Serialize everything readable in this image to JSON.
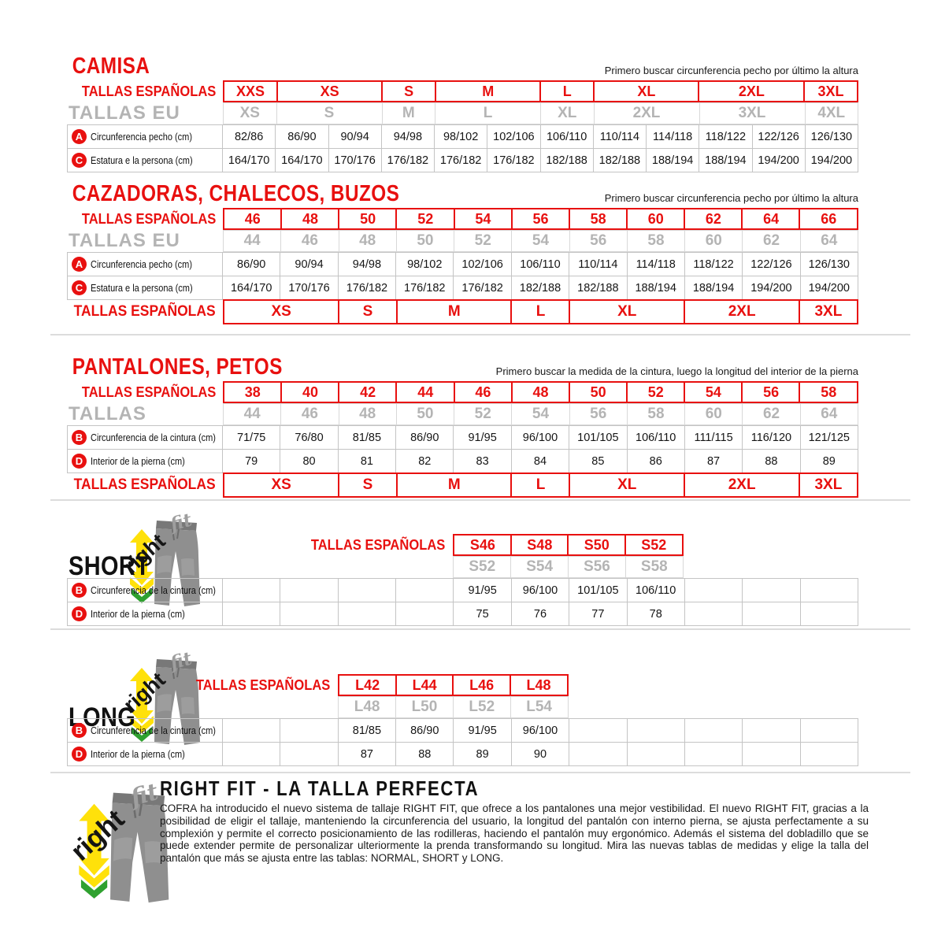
{
  "colors": {
    "red": "#e8100f",
    "gray": "#b4b4b4",
    "border": "#c4c4c4",
    "yellow": "#ffe10a",
    "green": "#2fa12f",
    "pants_gray": "#8f8f8f"
  },
  "logo": {
    "right": "right",
    "fit": "fit"
  },
  "sections": [
    {
      "title": "CAMISA",
      "note": "Primero buscar circunferencia pecho por último la altura",
      "es_label": "TALLAS ESPAÑOLAS",
      "eu_label": "TALLAS EU",
      "es_sizes": [
        {
          "label": "XXS",
          "span": 1
        },
        {
          "label": "XS",
          "span": 2
        },
        {
          "label": "S",
          "span": 1
        },
        {
          "label": "M",
          "span": 2
        },
        {
          "label": "L",
          "span": 1
        },
        {
          "label": "XL",
          "span": 2
        },
        {
          "label": "2XL",
          "span": 2
        },
        {
          "label": "3XL",
          "span": 1
        }
      ],
      "eu_sizes": [
        {
          "label": "XS",
          "span": 1
        },
        {
          "label": "S",
          "span": 2
        },
        {
          "label": "M",
          "span": 1
        },
        {
          "label": "L",
          "span": 2
        },
        {
          "label": "XL",
          "span": 1
        },
        {
          "label": "2XL",
          "span": 2
        },
        {
          "label": "3XL",
          "span": 2
        },
        {
          "label": "4XL",
          "span": 1
        }
      ],
      "rows": [
        {
          "badge": "A",
          "label": "Circunferencia pecho (cm)",
          "values": [
            "82/86",
            "86/90",
            "90/94",
            "94/98",
            "98/102",
            "102/106",
            "106/110",
            "110/114",
            "114/118",
            "118/122",
            "122/126",
            "126/130"
          ]
        },
        {
          "badge": "C",
          "label": "Estatura e la persona (cm)",
          "values": [
            "164/170",
            "164/170",
            "170/176",
            "176/182",
            "176/182",
            "176/182",
            "182/188",
            "182/188",
            "188/194",
            "188/194",
            "194/200",
            "194/200"
          ]
        }
      ],
      "bottom": null
    },
    {
      "title": "CAZADORAS, CHALECOS, BUZOS",
      "note": "Primero buscar circunferencia pecho por último la altura",
      "es_label": "TALLAS ESPAÑOLAS",
      "eu_label": "TALLAS EU",
      "es_sizes": [
        {
          "label": "46",
          "span": 1
        },
        {
          "label": "48",
          "span": 1
        },
        {
          "label": "50",
          "span": 1
        },
        {
          "label": "52",
          "span": 1
        },
        {
          "label": "54",
          "span": 1
        },
        {
          "label": "56",
          "span": 1
        },
        {
          "label": "58",
          "span": 1
        },
        {
          "label": "60",
          "span": 1
        },
        {
          "label": "62",
          "span": 1
        },
        {
          "label": "64",
          "span": 1
        },
        {
          "label": "66",
          "span": 1
        }
      ],
      "eu_sizes": [
        {
          "label": "44",
          "span": 1
        },
        {
          "label": "46",
          "span": 1
        },
        {
          "label": "48",
          "span": 1
        },
        {
          "label": "50",
          "span": 1
        },
        {
          "label": "52",
          "span": 1
        },
        {
          "label": "54",
          "span": 1
        },
        {
          "label": "56",
          "span": 1
        },
        {
          "label": "58",
          "span": 1
        },
        {
          "label": "60",
          "span": 1
        },
        {
          "label": "62",
          "span": 1
        },
        {
          "label": "64",
          "span": 1
        }
      ],
      "rows": [
        {
          "badge": "A",
          "label": "Circunferencia pecho (cm)",
          "values": [
            "86/90",
            "90/94",
            "94/98",
            "98/102",
            "102/106",
            "106/110",
            "110/114",
            "114/118",
            "118/122",
            "122/126",
            "126/130"
          ]
        },
        {
          "badge": "C",
          "label": "Estatura e la persona (cm)",
          "values": [
            "164/170",
            "170/176",
            "176/182",
            "176/182",
            "176/182",
            "182/188",
            "182/188",
            "188/194",
            "188/194",
            "194/200",
            "194/200"
          ]
        }
      ],
      "bottom": {
        "label": "TALLAS ESPAÑOLAS",
        "sizes": [
          {
            "label": "XS",
            "span": 2
          },
          {
            "label": "S",
            "span": 1
          },
          {
            "label": "M",
            "span": 2
          },
          {
            "label": "L",
            "span": 1
          },
          {
            "label": "XL",
            "span": 2
          },
          {
            "label": "2XL",
            "span": 2
          },
          {
            "label": "3XL",
            "span": 1
          }
        ]
      }
    },
    {
      "title": "PANTALONES, PETOS",
      "note": "Primero buscar la medida de la cintura, luego la longitud del interior de la pierna",
      "es_label": "TALLAS ESPAÑOLAS",
      "eu_label": "TALLAS",
      "es_sizes": [
        {
          "label": "38",
          "span": 1
        },
        {
          "label": "40",
          "span": 1
        },
        {
          "label": "42",
          "span": 1
        },
        {
          "label": "44",
          "span": 1
        },
        {
          "label": "46",
          "span": 1
        },
        {
          "label": "48",
          "span": 1
        },
        {
          "label": "50",
          "span": 1
        },
        {
          "label": "52",
          "span": 1
        },
        {
          "label": "54",
          "span": 1
        },
        {
          "label": "56",
          "span": 1
        },
        {
          "label": "58",
          "span": 1
        }
      ],
      "eu_sizes": [
        {
          "label": "44",
          "span": 1
        },
        {
          "label": "46",
          "span": 1
        },
        {
          "label": "48",
          "span": 1
        },
        {
          "label": "50",
          "span": 1
        },
        {
          "label": "52",
          "span": 1
        },
        {
          "label": "54",
          "span": 1
        },
        {
          "label": "56",
          "span": 1
        },
        {
          "label": "58",
          "span": 1
        },
        {
          "label": "60",
          "span": 1
        },
        {
          "label": "62",
          "span": 1
        },
        {
          "label": "64",
          "span": 1
        }
      ],
      "rows": [
        {
          "badge": "B",
          "label": "Circunferencia de la cintura (cm)",
          "values": [
            "71/75",
            "76/80",
            "81/85",
            "86/90",
            "91/95",
            "96/100",
            "101/105",
            "106/110",
            "111/115",
            "116/120",
            "121/125"
          ]
        },
        {
          "badge": "D",
          "label": "Interior de la pierna (cm)",
          "values": [
            "79",
            "80",
            "81",
            "82",
            "83",
            "84",
            "85",
            "86",
            "87",
            "88",
            "89"
          ]
        }
      ],
      "bottom": {
        "label": "TALLAS ESPAÑOLAS",
        "sizes": [
          {
            "label": "XS",
            "span": 2
          },
          {
            "label": "S",
            "span": 1
          },
          {
            "label": "M",
            "span": 2
          },
          {
            "label": "L",
            "span": 1
          },
          {
            "label": "XL",
            "span": 2
          },
          {
            "label": "2XL",
            "span": 2
          },
          {
            "label": "3XL",
            "span": 1
          }
        ]
      }
    }
  ],
  "rightfit": [
    {
      "heading": "SHORT",
      "es_label": "TALLAS ESPAÑOLAS",
      "red_sizes": [
        "S46",
        "S48",
        "S50",
        "S52"
      ],
      "gray_sizes": [
        "S52",
        "S54",
        "S56",
        "S58"
      ],
      "rows": [
        {
          "badge": "B",
          "label": "Circunferencia de la cintura (cm)",
          "values": [
            "91/95",
            "96/100",
            "101/105",
            "106/110"
          ]
        },
        {
          "badge": "D",
          "label": "Interior de la pierna (cm)",
          "values": [
            "75",
            "76",
            "77",
            "78"
          ]
        }
      ],
      "lead_empty": 4,
      "trail_empty": 3
    },
    {
      "heading": "LONG",
      "es_label": "TALLAS ESPAÑOLAS",
      "red_sizes": [
        "L42",
        "L44",
        "L46",
        "L48"
      ],
      "gray_sizes": [
        "L48",
        "L50",
        "L52",
        "L54"
      ],
      "rows": [
        {
          "badge": "B",
          "label": "Circunferencia de la cintura (cm)",
          "values": [
            "81/85",
            "86/90",
            "91/95",
            "96/100"
          ]
        },
        {
          "badge": "D",
          "label": "Interior de la pierna (cm)",
          "values": [
            "87",
            "88",
            "89",
            "90"
          ]
        }
      ],
      "lead_empty": 2,
      "trail_empty": 5
    }
  ],
  "footer": {
    "title": "RIGHT FIT - LA TALLA PERFECTA",
    "body": "COFRA ha introducido el nuevo sistema de tallaje RIGHT FIT, que ofrece a los pantalones una mejor vestibilidad. El nuevo RIGHT FIT, gracias a la posibilidad de eligir el tallaje, manteniendo la circunferencia del usuario, la longitud del pantalón con interno pierna, se ajusta perfectamente a su complexión y permite el correcto posicionamiento de las rodilleras, haciendo el pantalón muy ergonómico. Además el sistema del dobladillo que se puede extender permite de personalizar ulteriormente la prenda transformando su longitud. Mira las nuevas tablas de medidas y elige la talla del pantalón que más se ajusta entre las tablas: NORMAL, SHORT y LONG."
  }
}
